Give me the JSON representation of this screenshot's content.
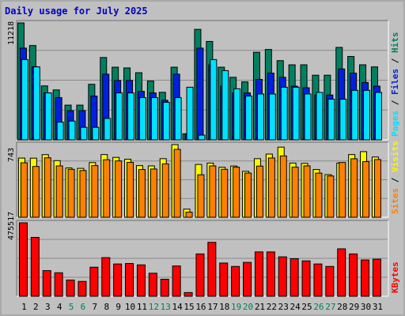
{
  "title": "Daily usage for July 2025",
  "colors": {
    "hits": "#008060",
    "files": "#0020e0",
    "pages": "#00e0ff",
    "visits": "#f8f800",
    "sites": "#ff8000",
    "kbytes": "#ff0000",
    "weekend_day": "#00805c",
    "weekday": "#000000"
  },
  "chart_data": [
    {
      "type": "bar",
      "name": "hits-files-pages",
      "y_max_label": "11218",
      "right_labels": [
        "Pages",
        "Files",
        "Hits"
      ],
      "categories": [
        "1",
        "2",
        "3",
        "4",
        "5",
        "6",
        "7",
        "8",
        "9",
        "10",
        "11",
        "12",
        "13",
        "14",
        "15",
        "16",
        "17",
        "18",
        "19",
        "20",
        "21",
        "22",
        "23",
        "24",
        "25",
        "26",
        "27",
        "28",
        "29",
        "30",
        "31"
      ],
      "series": [
        {
          "name": "Hits",
          "values": [
            11218,
            9048,
            5176,
            4790,
            3330,
            3330,
            5330,
            7900,
            6970,
            6900,
            6440,
            5640,
            4560,
            6970,
            580,
            10600,
            9440,
            6970,
            6000,
            5560,
            8400,
            8670,
            7600,
            7200,
            7200,
            6200,
            6200,
            8870,
            8000,
            7200,
            7000
          ]
        },
        {
          "name": "Files",
          "values": [
            8800,
            7000,
            4500,
            4050,
            2800,
            2800,
            4200,
            6300,
            5700,
            5700,
            4650,
            4500,
            3800,
            6300,
            580,
            8800,
            7200,
            5150,
            4500,
            4500,
            5800,
            6400,
            6000,
            5150,
            5000,
            4300,
            4300,
            6800,
            6400,
            5500,
            5150
          ]
        },
        {
          "name": "Pages",
          "values": [
            7700,
            7000,
            4500,
            1700,
            1800,
            1200,
            1200,
            2050,
            4500,
            4500,
            4050,
            4050,
            3600,
            4050,
            5050,
            450,
            7700,
            6640,
            4900,
            4200,
            4400,
            4400,
            5050,
            5050,
            4400,
            4550,
            3900,
            3900,
            4750,
            4750,
            4550
          ]
        }
      ]
    },
    {
      "type": "bar",
      "name": "visits-sites",
      "y_max_label": "743",
      "right_labels": [
        "Sites",
        "Visits"
      ],
      "categories": [
        "1",
        "2",
        "3",
        "4",
        "5",
        "6",
        "7",
        "8",
        "9",
        "10",
        "11",
        "12",
        "13",
        "14",
        "15",
        "16",
        "17",
        "18",
        "19",
        "20",
        "21",
        "22",
        "23",
        "24",
        "25",
        "26",
        "27",
        "28",
        "29",
        "30",
        "31"
      ],
      "series": [
        {
          "name": "Visits",
          "values": [
            605,
            604,
            640,
            579,
            504,
            500,
            559,
            641,
            612,
            593,
            528,
            525,
            599,
            743,
            83,
            540,
            554,
            511,
            524,
            470,
            599,
            646,
            717,
            554,
            551,
            488,
            436,
            554,
            641,
            671,
            616
          ]
        },
        {
          "name": "Sites",
          "values": [
            557,
            519,
            608,
            525,
            490,
            478,
            528,
            588,
            576,
            561,
            488,
            493,
            546,
            694,
            52,
            434,
            525,
            490,
            512,
            452,
            523,
            606,
            627,
            512,
            525,
            451,
            422,
            560,
            598,
            569,
            590
          ]
        }
      ]
    },
    {
      "type": "bar",
      "name": "kbytes",
      "y_max_label": "475517",
      "right_labels": [
        "KBytes"
      ],
      "categories": [
        "1",
        "2",
        "3",
        "4",
        "5",
        "6",
        "7",
        "8",
        "9",
        "10",
        "11",
        "12",
        "13",
        "14",
        "15",
        "16",
        "17",
        "18",
        "19",
        "20",
        "21",
        "22",
        "23",
        "24",
        "25",
        "26",
        "27",
        "28",
        "29",
        "30",
        "31"
      ],
      "series": [
        {
          "name": "KBytes",
          "values": [
            475517,
            381000,
            166000,
            152000,
            105000,
            96000,
            188000,
            250000,
            209000,
            212000,
            203000,
            149000,
            110000,
            196000,
            24000,
            274000,
            349000,
            215000,
            193000,
            219000,
            287000,
            287000,
            255000,
            243000,
            229000,
            209000,
            193000,
            307000,
            274000,
            235000,
            240000
          ]
        }
      ]
    }
  ]
}
